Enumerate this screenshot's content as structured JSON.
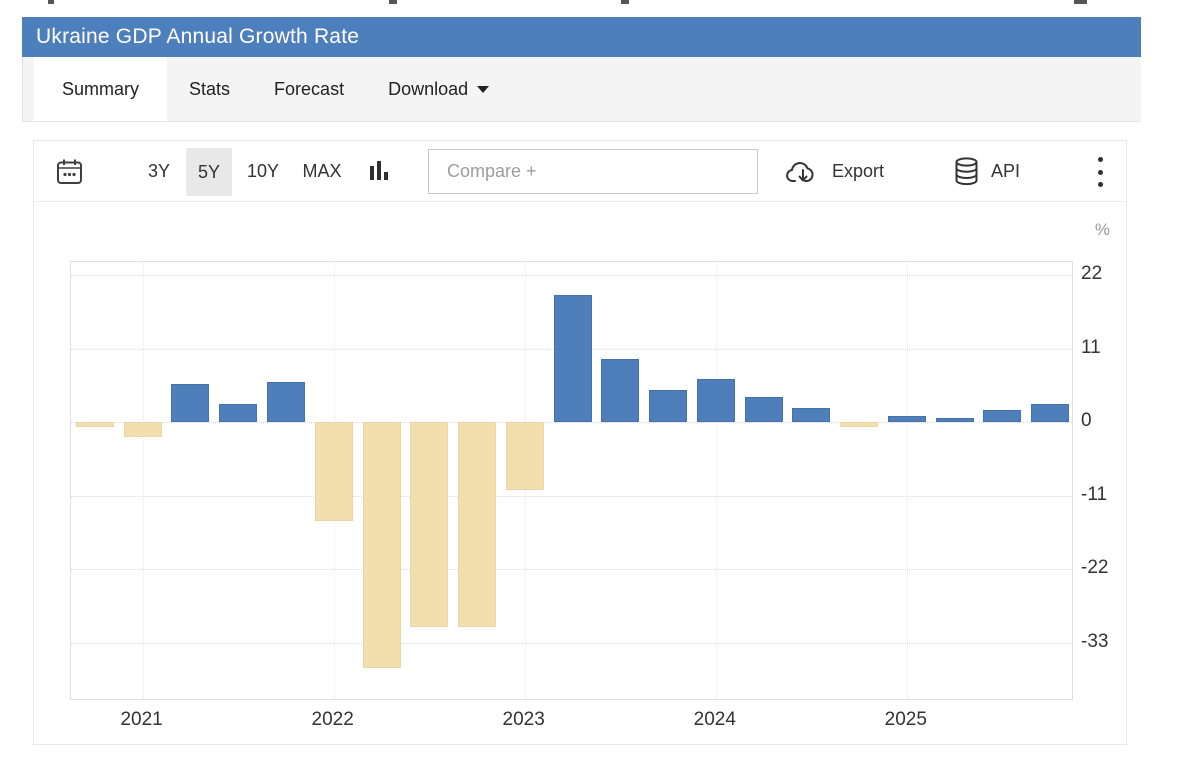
{
  "header": {
    "title": "Ukraine GDP Annual Growth Rate",
    "bg_color": "#4e7fbd"
  },
  "tabs": [
    {
      "label": "Summary",
      "active": true
    },
    {
      "label": "Stats",
      "active": false
    },
    {
      "label": "Forecast",
      "active": false
    },
    {
      "label": "Download",
      "active": false,
      "has_caret": true
    }
  ],
  "toolbar": {
    "ranges": [
      {
        "label": "3Y",
        "selected": false
      },
      {
        "label": "5Y",
        "selected": true
      },
      {
        "label": "10Y",
        "selected": false
      },
      {
        "label": "MAX",
        "selected": false
      }
    ],
    "compare_placeholder": "Compare +",
    "export_label": "Export",
    "api_label": "API",
    "icons": {
      "date": "calendar-icon",
      "chart_type": "bar-chart-icon",
      "export": "cloud-download-icon",
      "api": "database-icon",
      "menu": "kebab-menu-icon",
      "download_caret": "caret-down-icon"
    }
  },
  "chart_data": {
    "type": "bar",
    "title": "Ukraine GDP Annual Growth Rate",
    "ylabel_unit": "%",
    "x": [
      "2020-Q4",
      "2021-Q1",
      "2021-Q2",
      "2021-Q3",
      "2021-Q4",
      "2022-Q1",
      "2022-Q2",
      "2022-Q3",
      "2022-Q4",
      "2023-Q1",
      "2023-Q2",
      "2023-Q3",
      "2023-Q4",
      "2024-Q1",
      "2024-Q2",
      "2024-Q3",
      "2024-Q4",
      "2025-Q1",
      "2025-Q2",
      "2025-Q3",
      "2025-Q4"
    ],
    "values": [
      -0.7,
      -2.2,
      5.8,
      2.7,
      6.1,
      -14.7,
      -36.7,
      -30.6,
      -30.6,
      -10.1,
      19.1,
      9.5,
      4.9,
      6.5,
      3.8,
      2.1,
      -0.7,
      1.0,
      0.6,
      1.9,
      2.8
    ],
    "yticks": [
      22,
      11,
      0,
      -11,
      -22,
      -33
    ],
    "ylim": [
      -41.7,
      24.0
    ],
    "xticks": [
      {
        "label": "2021",
        "index": 1
      },
      {
        "label": "2022",
        "index": 5
      },
      {
        "label": "2023",
        "index": 9
      },
      {
        "label": "2024",
        "index": 13
      },
      {
        "label": "2025",
        "index": 17
      }
    ],
    "grid": true,
    "legend": "none",
    "positive_color": "#4e7fba",
    "negative_color": "#f3dfad"
  }
}
